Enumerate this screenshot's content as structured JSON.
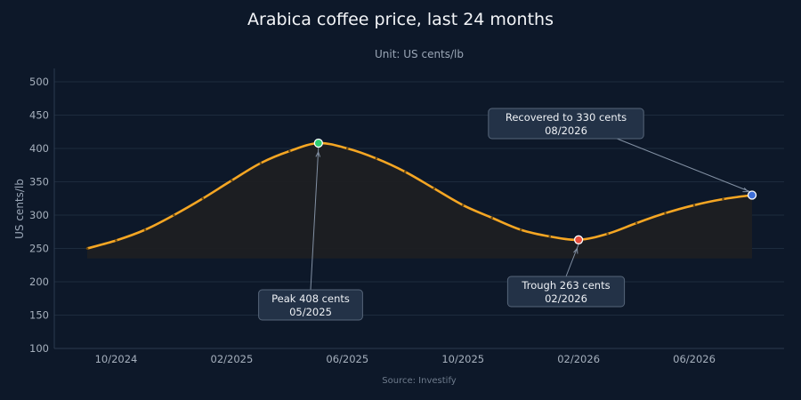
{
  "chart_data": {
    "type": "area",
    "title": "Arabica coffee price, last 24 months",
    "subtitle": "Unit: US cents/lb",
    "ylabel": "US cents/lb",
    "xlabel": "",
    "source": "Source: Investify",
    "ylim": [
      100,
      520
    ],
    "yticks": [
      100,
      150,
      200,
      250,
      300,
      350,
      400,
      450,
      500
    ],
    "xtick_labels": [
      "10/2024",
      "02/2025",
      "06/2025",
      "10/2025",
      "02/2026",
      "06/2026"
    ],
    "x": [
      "09/2024",
      "10/2024",
      "11/2024",
      "12/2024",
      "01/2025",
      "02/2025",
      "03/2025",
      "04/2025",
      "05/2025",
      "06/2025",
      "07/2025",
      "08/2025",
      "09/2025",
      "10/2025",
      "11/2025",
      "12/2025",
      "01/2026",
      "02/2026",
      "03/2026",
      "04/2026",
      "05/2026",
      "06/2026",
      "07/2026",
      "08/2026"
    ],
    "series": [
      {
        "values": [
          250,
          262,
          278,
          300,
          325,
          352,
          378,
          396,
          408,
          400,
          385,
          365,
          340,
          315,
          296,
          278,
          268,
          263,
          272,
          288,
          303,
          315,
          324,
          330
        ]
      }
    ],
    "annotations": [
      {
        "index": 8,
        "label": "Peak 408 cents",
        "sublabel": "05/2025"
      },
      {
        "index": 17,
        "label": "Trough 263 cents",
        "sublabel": "02/2026"
      },
      {
        "index": 23,
        "label": "Recovered to 330 cents",
        "sublabel": "08/2026"
      }
    ],
    "area_baseline": 235,
    "grid": true,
    "colors": {
      "background": "#0d1829",
      "line": "#f5a623",
      "area": "#1e1f22",
      "grid": "#1d2b3d",
      "peak_marker": "#2ecc71",
      "trough_marker": "#e74c3c",
      "end_marker": "#3f6fd8",
      "annotation_box": "#233247"
    }
  }
}
